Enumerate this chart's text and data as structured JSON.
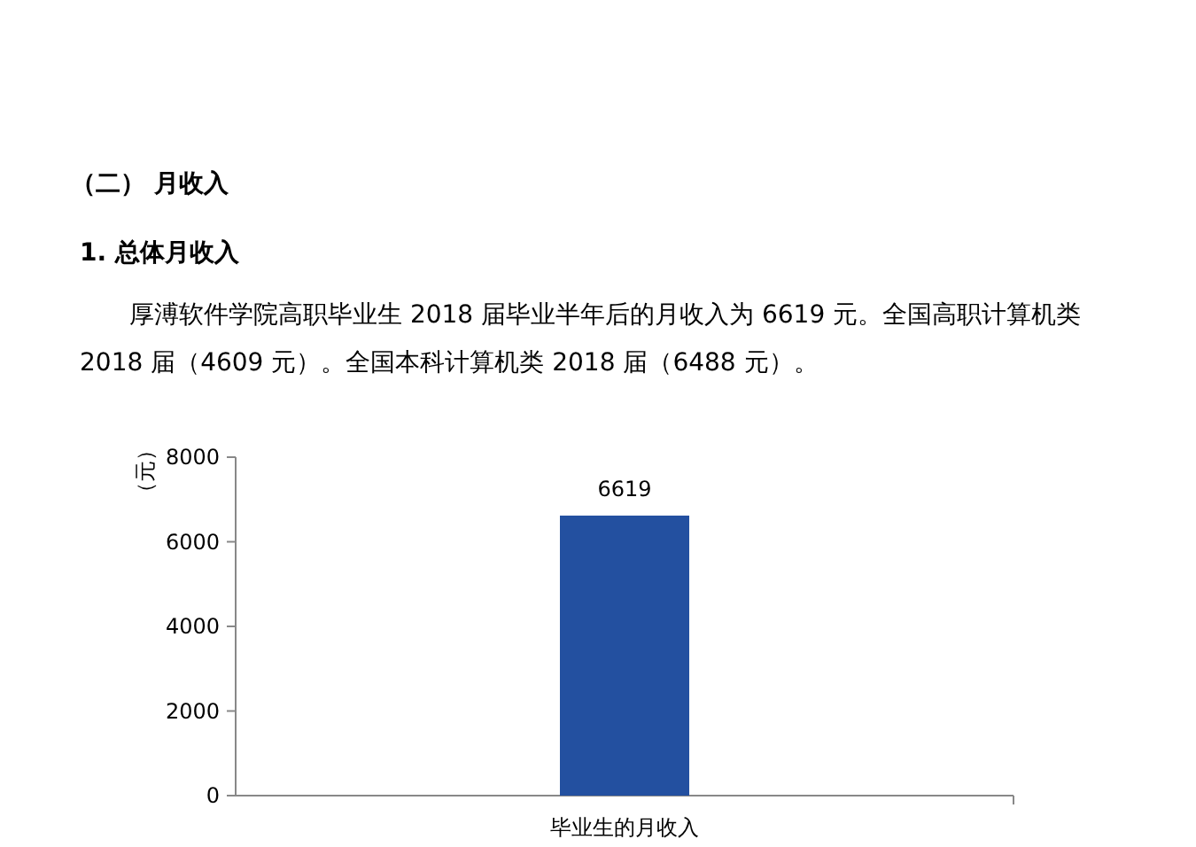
{
  "chart_data": {
    "type": "bar",
    "title": "（二）  月收入",
    "subtitle": "1.    总体月收入",
    "annotations": [
      "厚溥软件学院高职毕业生 2018 届毕业半年后的月收入为 6619 元。全国高职计算机类 2018 届（4609 元）。全国本科计算机类 2018 届（6488 元）。"
    ],
    "ylabel": "（元）",
    "categories": [
      "毕业生的月收入"
    ],
    "values": [
      6619
    ],
    "color": "#2350a0",
    "data_labels": true,
    "ylim": [
      0,
      8000
    ],
    "yticks": [
      0,
      2000,
      4000,
      6000,
      8000
    ],
    "grid": false
  }
}
